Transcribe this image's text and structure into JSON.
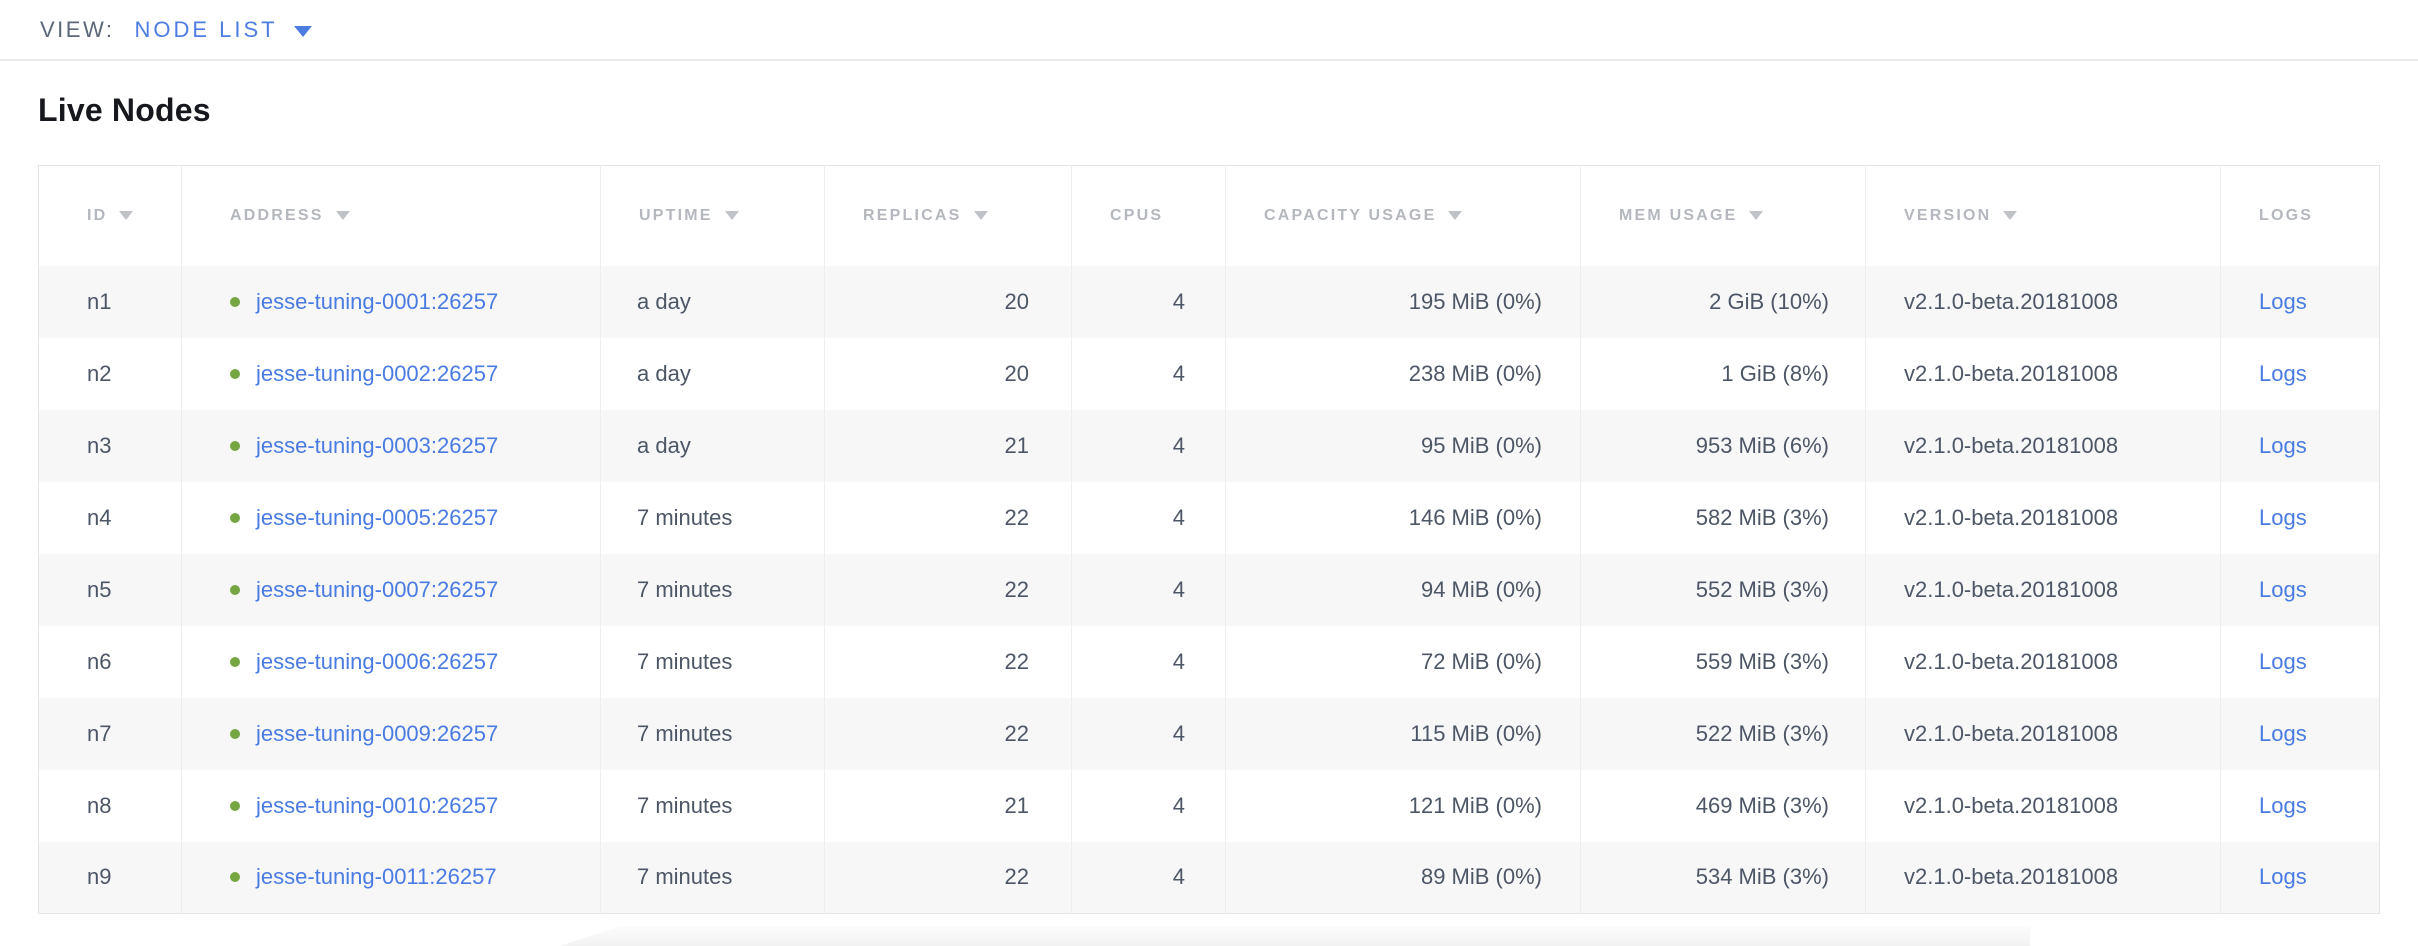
{
  "topbar": {
    "view_label": "VIEW:",
    "view_value": "NODE LIST"
  },
  "page": {
    "title": "Live Nodes"
  },
  "colors": {
    "link": "#4a7be2",
    "accent": "#4e7de2",
    "healthy": "#76a642",
    "header-text": "#b4b8be",
    "cell-text": "#4d5666",
    "row-alt": "#f7f7f7",
    "grid": "#ededed",
    "table-border": "#e4e4e4",
    "topbar-label": "#5c6778",
    "title": "#16181d"
  },
  "table": {
    "columns": [
      {
        "key": "id",
        "label": "ID",
        "sorted": true
      },
      {
        "key": "address",
        "label": "ADDRESS",
        "sorted": true
      },
      {
        "key": "uptime",
        "label": "UPTIME",
        "sorted": true
      },
      {
        "key": "replicas",
        "label": "REPLICAS",
        "sorted": true
      },
      {
        "key": "cpus",
        "label": "CPUS",
        "sorted": false
      },
      {
        "key": "capacity",
        "label": "CAPACITY USAGE",
        "sorted": true
      },
      {
        "key": "mem",
        "label": "MEM USAGE",
        "sorted": true
      },
      {
        "key": "version",
        "label": "VERSION",
        "sorted": true
      },
      {
        "key": "logs",
        "label": "LOGS",
        "sorted": false
      }
    ],
    "rows": [
      {
        "id": "n1",
        "address": "jesse-tuning-0001:26257",
        "uptime": "a day",
        "replicas": "20",
        "cpus": "4",
        "capacity": "195 MiB (0%)",
        "mem": "2 GiB (10%)",
        "version": "v2.1.0-beta.20181008",
        "logs": "Logs"
      },
      {
        "id": "n2",
        "address": "jesse-tuning-0002:26257",
        "uptime": "a day",
        "replicas": "20",
        "cpus": "4",
        "capacity": "238 MiB (0%)",
        "mem": "1 GiB (8%)",
        "version": "v2.1.0-beta.20181008",
        "logs": "Logs"
      },
      {
        "id": "n3",
        "address": "jesse-tuning-0003:26257",
        "uptime": "a day",
        "replicas": "21",
        "cpus": "4",
        "capacity": "95 MiB (0%)",
        "mem": "953 MiB (6%)",
        "version": "v2.1.0-beta.20181008",
        "logs": "Logs"
      },
      {
        "id": "n4",
        "address": "jesse-tuning-0005:26257",
        "uptime": "7 minutes",
        "replicas": "22",
        "cpus": "4",
        "capacity": "146 MiB (0%)",
        "mem": "582 MiB (3%)",
        "version": "v2.1.0-beta.20181008",
        "logs": "Logs"
      },
      {
        "id": "n5",
        "address": "jesse-tuning-0007:26257",
        "uptime": "7 minutes",
        "replicas": "22",
        "cpus": "4",
        "capacity": "94 MiB (0%)",
        "mem": "552 MiB (3%)",
        "version": "v2.1.0-beta.20181008",
        "logs": "Logs"
      },
      {
        "id": "n6",
        "address": "jesse-tuning-0006:26257",
        "uptime": "7 minutes",
        "replicas": "22",
        "cpus": "4",
        "capacity": "72 MiB (0%)",
        "mem": "559 MiB (3%)",
        "version": "v2.1.0-beta.20181008",
        "logs": "Logs"
      },
      {
        "id": "n7",
        "address": "jesse-tuning-0009:26257",
        "uptime": "7 minutes",
        "replicas": "22",
        "cpus": "4",
        "capacity": "115 MiB (0%)",
        "mem": "522 MiB (3%)",
        "version": "v2.1.0-beta.20181008",
        "logs": "Logs"
      },
      {
        "id": "n8",
        "address": "jesse-tuning-0010:26257",
        "uptime": "7 minutes",
        "replicas": "21",
        "cpus": "4",
        "capacity": "121 MiB (0%)",
        "mem": "469 MiB (3%)",
        "version": "v2.1.0-beta.20181008",
        "logs": "Logs"
      },
      {
        "id": "n9",
        "address": "jesse-tuning-0011:26257",
        "uptime": "7 minutes",
        "replicas": "22",
        "cpus": "4",
        "capacity": "89 MiB (0%)",
        "mem": "534 MiB (3%)",
        "version": "v2.1.0-beta.20181008",
        "logs": "Logs"
      }
    ]
  }
}
